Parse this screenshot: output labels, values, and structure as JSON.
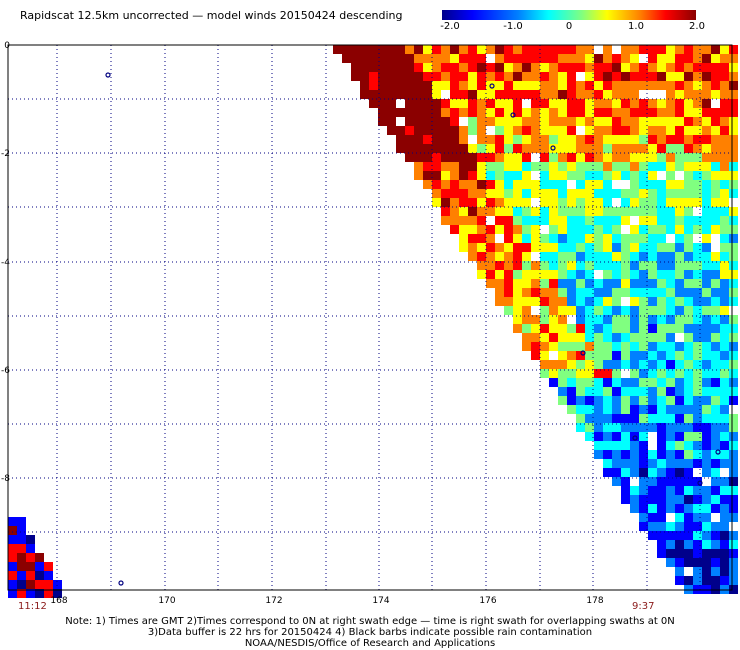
{
  "title": "Rapidscat 12.5km uncorrected — model winds 20150424 descending",
  "colorbar": {
    "labels": [
      "-2.0",
      "-1.0",
      "0",
      "1.0",
      "2.0"
    ],
    "colors": [
      "#00008b",
      "#0000ff",
      "#0080ff",
      "#00ffff",
      "#80ff80",
      "#ffff00",
      "#ff8000",
      "#ff0000",
      "#8b0000"
    ]
  },
  "axes": {
    "x_ticks": [
      "168",
      "170",
      "172",
      "174",
      "176",
      "178"
    ],
    "y_ticks": [
      "0",
      "-2",
      "-4",
      "-6",
      "-8"
    ]
  },
  "times": {
    "left": "11:12",
    "right": "9:37"
  },
  "notes": [
    "Note: 1) Times are GMT 2)Times correspond to 0N at right swath edge — time is right swath for overlapping swaths at 0N",
    "3)Data buffer is 22 hrs for 20150424 4) Black barbs indicate possible rain contamination",
    "NOAA/NESDIS/Office of Research and Applications"
  ]
}
